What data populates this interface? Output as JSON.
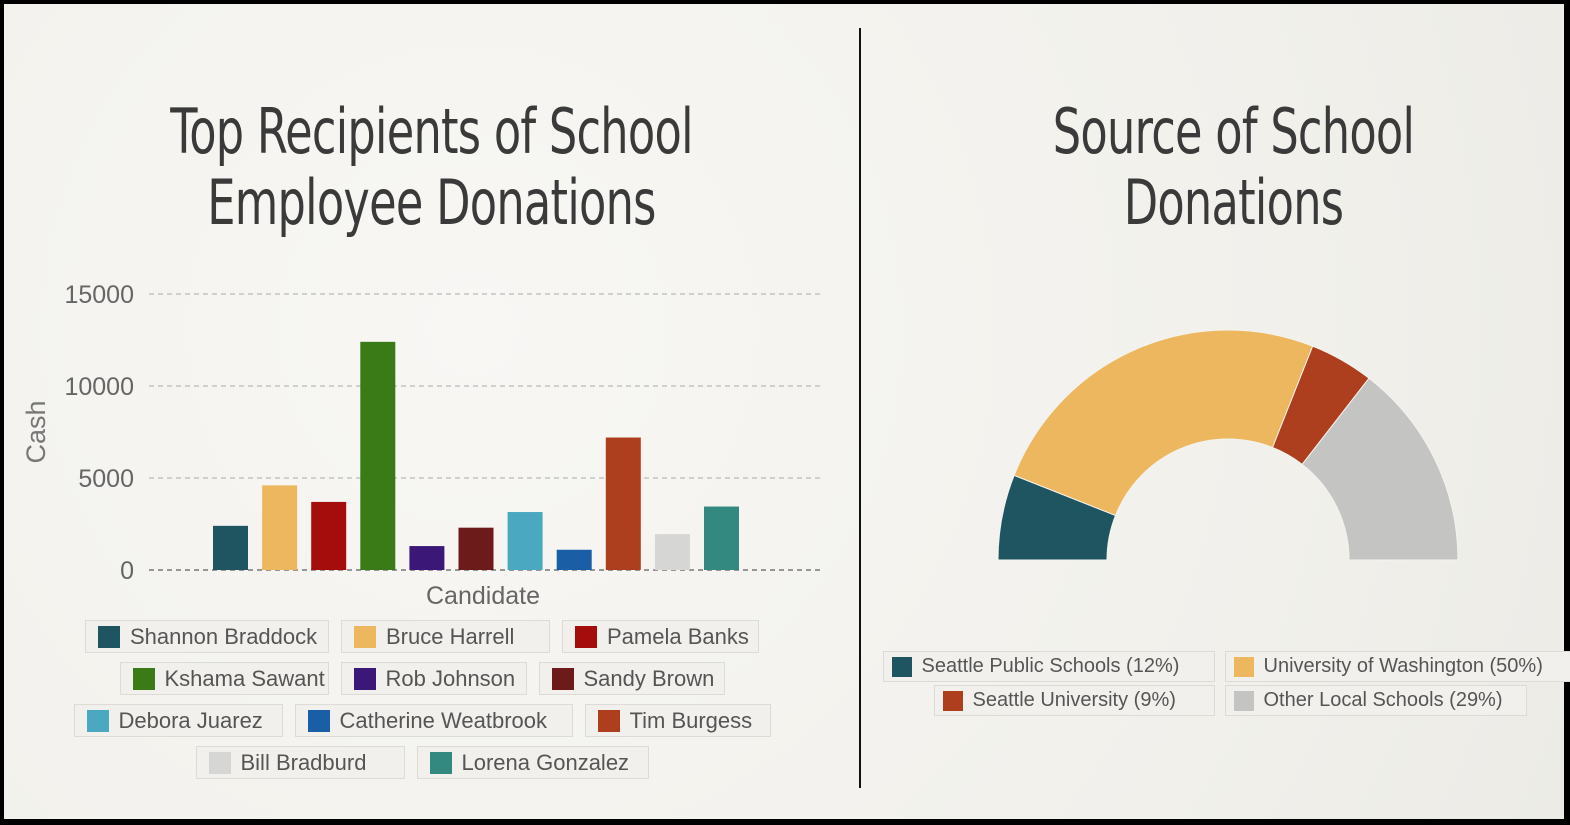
{
  "left": {
    "title_line1": "Top Recipients of School",
    "title_line2": "Employee Donations"
  },
  "right": {
    "title_line1": "Source of School",
    "title_line2": "Donations"
  },
  "chart_data": [
    {
      "type": "bar",
      "title": "Top Recipients of School Employee Donations",
      "xlabel": "Candidate",
      "ylabel": "Cash",
      "ylim": [
        0,
        15000
      ],
      "yticks": [
        0,
        5000,
        10000,
        15000
      ],
      "grid": true,
      "legend_position": "bottom",
      "categories": [
        "Shannon Braddock",
        "Bruce Harrell",
        "Pamela Banks",
        "Kshama Sawant",
        "Rob Johnson",
        "Sandy Brown",
        "Debora Juarez",
        "Catherine Weatbrook",
        "Tim Burgess",
        "Bill Bradburd",
        "Lorena Gonzalez"
      ],
      "values": [
        2400,
        4600,
        3700,
        12400,
        1300,
        2300,
        3150,
        1100,
        7200,
        1950,
        3450
      ],
      "colors": [
        "#1f5560",
        "#edb75f",
        "#a50d0d",
        "#3a7a17",
        "#3b1877",
        "#6d1a1a",
        "#4aa8c0",
        "#1a5fa5",
        "#ad3e1e",
        "#d6d6d4",
        "#33897f"
      ]
    },
    {
      "type": "pie",
      "subtype": "semicircle-donut",
      "title": "Source of School Donations",
      "legend_position": "bottom",
      "labels": [
        "Seattle Public Schools (12%)",
        "University of Washington (50%)",
        "Seattle University (9%)",
        "Other Local Schools (29%)"
      ],
      "values": [
        12,
        50,
        9,
        29
      ],
      "colors": [
        "#1f5560",
        "#edb75f",
        "#ad3e1e",
        "#c4c4c3"
      ]
    }
  ]
}
